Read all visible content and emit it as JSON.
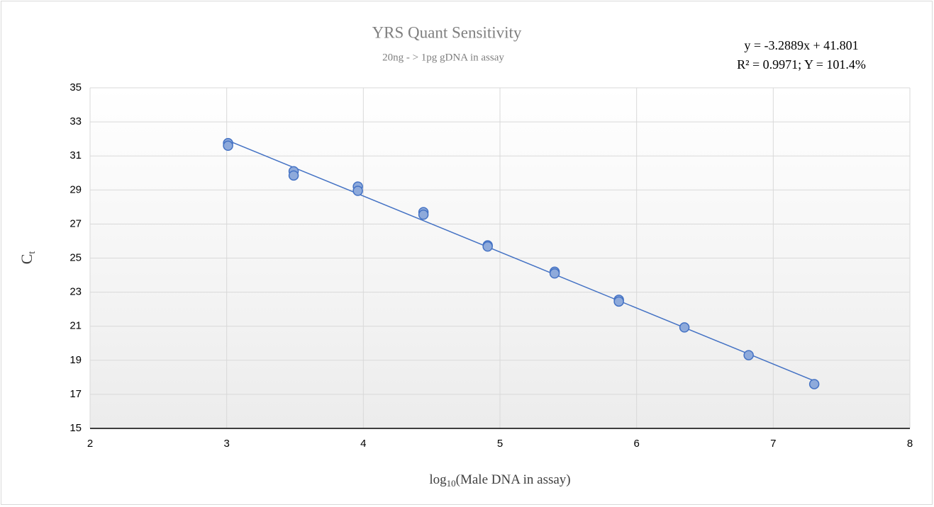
{
  "chart_data": {
    "type": "scatter",
    "title": "YRS Quant Sensitivity",
    "subtitle": "20ng - > 1pg gDNA in assay",
    "xlabel": {
      "main": "log",
      "sub": "10",
      "rest": "(Male DNA in assay)"
    },
    "ylabel": {
      "main": "C",
      "sub": "t"
    },
    "x": [
      3.01,
      3.01,
      3.49,
      3.49,
      3.96,
      3.96,
      4.44,
      4.44,
      4.91,
      4.91,
      5.4,
      5.4,
      5.87,
      5.87,
      6.35,
      6.82,
      7.3
    ],
    "values": [
      31.75,
      31.6,
      30.1,
      29.85,
      29.2,
      28.95,
      27.7,
      27.55,
      25.75,
      25.68,
      24.2,
      24.1,
      22.55,
      22.45,
      20.93,
      19.3,
      17.6
    ],
    "color": "#4472c4",
    "fill": "#8eaadb",
    "trendline": {
      "slope": -3.2889,
      "intercept": 41.801,
      "label": "y = -3.2889x + 41.801",
      "stats": "R² = 0.9971; Y = 101.4%"
    },
    "xlim": [
      2,
      8
    ],
    "xticks": [
      2,
      3,
      4,
      5,
      6,
      7,
      8
    ],
    "ylim": [
      15,
      35
    ],
    "yticks": [
      15,
      17,
      19,
      21,
      23,
      25,
      27,
      29,
      31,
      33,
      35
    ],
    "grid": true
  }
}
